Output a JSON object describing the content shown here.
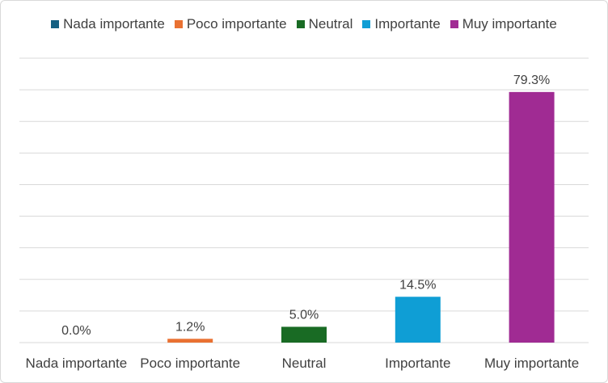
{
  "chart_data": {
    "type": "bar",
    "title": "",
    "xlabel": "",
    "ylabel": "",
    "categories": [
      "Nada importante",
      "Poco importante",
      "Neutral",
      "Importante",
      "Muy importante"
    ],
    "values": [
      0.0,
      1.2,
      5.0,
      14.5,
      79.3
    ],
    "data_labels": [
      "0.0%",
      "1.2%",
      "5.0%",
      "14.5%",
      "79.3%"
    ],
    "colors": [
      "#156082",
      "#E97132",
      "#196B24",
      "#0F9ED5",
      "#A02B93"
    ],
    "ylim": [
      0,
      90
    ],
    "gridlines": [
      0,
      10,
      20,
      30,
      40,
      50,
      60,
      70,
      80,
      90
    ],
    "grid": true,
    "legend_position": "top",
    "legend": [
      "Nada importante",
      "Poco importante",
      "Neutral",
      "Importante",
      "Muy importante"
    ]
  }
}
